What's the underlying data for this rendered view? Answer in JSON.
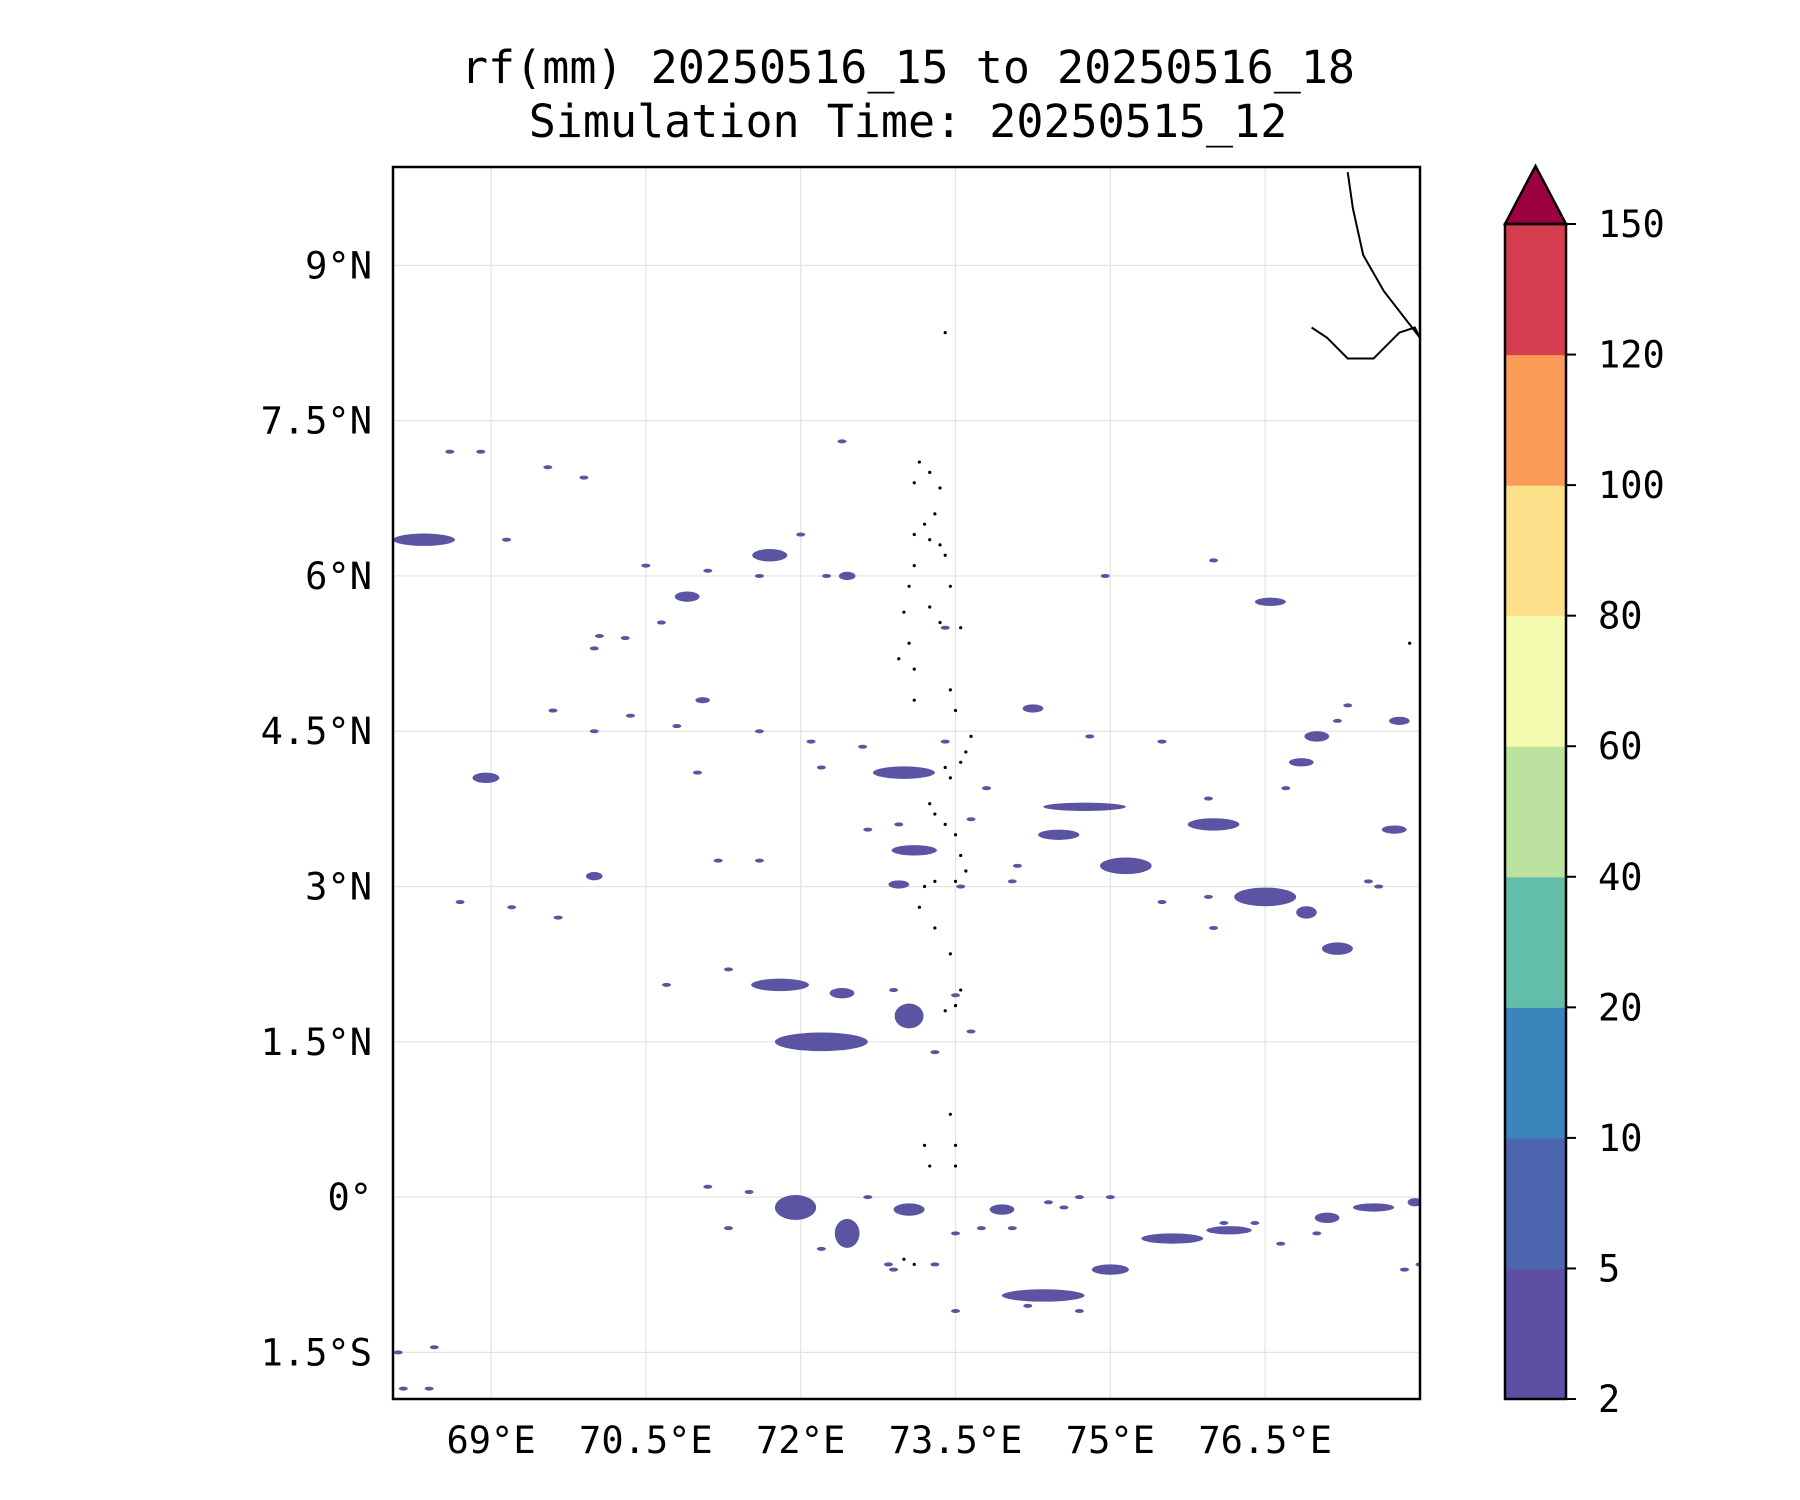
{
  "title": {
    "line1": "rf(mm) 20250516_15 to 20250516_18",
    "line2": "Simulation Time: 20250515_12"
  },
  "map": {
    "lon_range": [
      68.05,
      78.0
    ],
    "lat_range": [
      -1.95,
      9.95
    ],
    "x_ticks": [
      {
        "value": 69.0,
        "label": "69°E"
      },
      {
        "value": 70.5,
        "label": "70.5°E"
      },
      {
        "value": 72.0,
        "label": "72°E"
      },
      {
        "value": 73.5,
        "label": "73.5°E"
      },
      {
        "value": 75.0,
        "label": "75°E"
      },
      {
        "value": 76.5,
        "label": "76.5°E"
      }
    ],
    "y_ticks": [
      {
        "value": 9.0,
        "label": "9°N"
      },
      {
        "value": 7.5,
        "label": "7.5°N"
      },
      {
        "value": 6.0,
        "label": "6°N"
      },
      {
        "value": 4.5,
        "label": "4.5°N"
      },
      {
        "value": 3.0,
        "label": "3°N"
      },
      {
        "value": 1.5,
        "label": "1.5°N"
      },
      {
        "value": 0.0,
        "label": "0°"
      },
      {
        "value": -1.5,
        "label": "1.5°S"
      }
    ],
    "grid": true,
    "rain_color": "#5b54a3",
    "coastline": [
      [
        77.3,
        9.9
      ],
      [
        77.35,
        9.55
      ],
      [
        77.45,
        9.1
      ],
      [
        77.65,
        8.75
      ],
      [
        78.0,
        8.3
      ],
      [
        77.95,
        8.4
      ],
      [
        77.8,
        8.35
      ],
      [
        77.55,
        8.1
      ],
      [
        77.3,
        8.1
      ],
      [
        77.1,
        8.3
      ],
      [
        76.95,
        8.4
      ]
    ],
    "rain_cells": [
      {
        "lon": 68.35,
        "lat": 6.35,
        "rx": 0.3,
        "ry": 0.06
      },
      {
        "lon": 71.7,
        "lat": 6.2,
        "rx": 0.17,
        "ry": 0.06
      },
      {
        "lon": 72.45,
        "lat": 6.0,
        "rx": 0.08,
        "ry": 0.04
      },
      {
        "lon": 70.9,
        "lat": 5.8,
        "rx": 0.12,
        "ry": 0.05
      },
      {
        "lon": 76.55,
        "lat": 5.75,
        "rx": 0.15,
        "ry": 0.04
      },
      {
        "lon": 71.05,
        "lat": 4.8,
        "rx": 0.07,
        "ry": 0.03
      },
      {
        "lon": 74.25,
        "lat": 4.72,
        "rx": 0.1,
        "ry": 0.04
      },
      {
        "lon": 68.95,
        "lat": 4.05,
        "rx": 0.13,
        "ry": 0.05
      },
      {
        "lon": 73.0,
        "lat": 4.1,
        "rx": 0.3,
        "ry": 0.06
      },
      {
        "lon": 77.0,
        "lat": 4.45,
        "rx": 0.12,
        "ry": 0.05
      },
      {
        "lon": 76.85,
        "lat": 4.2,
        "rx": 0.12,
        "ry": 0.04
      },
      {
        "lon": 77.8,
        "lat": 4.6,
        "rx": 0.1,
        "ry": 0.04
      },
      {
        "lon": 74.75,
        "lat": 3.77,
        "rx": 0.4,
        "ry": 0.04
      },
      {
        "lon": 76.0,
        "lat": 3.6,
        "rx": 0.25,
        "ry": 0.06
      },
      {
        "lon": 74.5,
        "lat": 3.5,
        "rx": 0.2,
        "ry": 0.05
      },
      {
        "lon": 73.1,
        "lat": 3.35,
        "rx": 0.22,
        "ry": 0.05
      },
      {
        "lon": 75.15,
        "lat": 3.2,
        "rx": 0.25,
        "ry": 0.08
      },
      {
        "lon": 77.75,
        "lat": 3.55,
        "rx": 0.12,
        "ry": 0.04
      },
      {
        "lon": 70.0,
        "lat": 3.1,
        "rx": 0.08,
        "ry": 0.04
      },
      {
        "lon": 72.95,
        "lat": 3.02,
        "rx": 0.1,
        "ry": 0.04
      },
      {
        "lon": 76.5,
        "lat": 2.9,
        "rx": 0.3,
        "ry": 0.09
      },
      {
        "lon": 76.9,
        "lat": 2.75,
        "rx": 0.1,
        "ry": 0.06
      },
      {
        "lon": 77.2,
        "lat": 2.4,
        "rx": 0.15,
        "ry": 0.06
      },
      {
        "lon": 71.8,
        "lat": 2.05,
        "rx": 0.28,
        "ry": 0.06
      },
      {
        "lon": 72.4,
        "lat": 1.97,
        "rx": 0.12,
        "ry": 0.05
      },
      {
        "lon": 73.05,
        "lat": 1.75,
        "rx": 0.14,
        "ry": 0.12
      },
      {
        "lon": 72.2,
        "lat": 1.5,
        "rx": 0.45,
        "ry": 0.09
      },
      {
        "lon": 71.95,
        "lat": -0.1,
        "rx": 0.2,
        "ry": 0.12
      },
      {
        "lon": 72.45,
        "lat": -0.35,
        "rx": 0.12,
        "ry": 0.14
      },
      {
        "lon": 73.05,
        "lat": -0.12,
        "rx": 0.15,
        "ry": 0.06
      },
      {
        "lon": 73.95,
        "lat": -0.12,
        "rx": 0.12,
        "ry": 0.05
      },
      {
        "lon": 74.35,
        "lat": -0.95,
        "rx": 0.4,
        "ry": 0.06
      },
      {
        "lon": 75.0,
        "lat": -0.7,
        "rx": 0.18,
        "ry": 0.05
      },
      {
        "lon": 75.6,
        "lat": -0.4,
        "rx": 0.3,
        "ry": 0.05
      },
      {
        "lon": 76.15,
        "lat": -0.32,
        "rx": 0.22,
        "ry": 0.04
      },
      {
        "lon": 77.1,
        "lat": -0.2,
        "rx": 0.12,
        "ry": 0.05
      },
      {
        "lon": 77.55,
        "lat": -0.1,
        "rx": 0.2,
        "ry": 0.04
      },
      {
        "lon": 77.95,
        "lat": -0.05,
        "rx": 0.07,
        "ry": 0.04
      }
    ],
    "rain_specks": [
      [
        68.9,
        7.2
      ],
      [
        68.6,
        7.2
      ],
      [
        69.55,
        7.05
      ],
      [
        69.9,
        6.95
      ],
      [
        69.15,
        6.35
      ],
      [
        72.4,
        7.3
      ],
      [
        72.0,
        6.4
      ],
      [
        71.1,
        6.05
      ],
      [
        70.5,
        6.1
      ],
      [
        72.25,
        6.0
      ],
      [
        71.6,
        6.0
      ],
      [
        70.65,
        5.55
      ],
      [
        70.05,
        5.42
      ],
      [
        70.3,
        5.4
      ],
      [
        70.0,
        5.3
      ],
      [
        73.4,
        5.5
      ],
      [
        74.95,
        6.0
      ],
      [
        76.0,
        6.15
      ],
      [
        69.6,
        4.7
      ],
      [
        70.35,
        4.65
      ],
      [
        70.0,
        4.5
      ],
      [
        70.8,
        4.55
      ],
      [
        71.6,
        4.5
      ],
      [
        72.1,
        4.4
      ],
      [
        72.6,
        4.35
      ],
      [
        73.4,
        4.4
      ],
      [
        71.0,
        4.1
      ],
      [
        72.2,
        4.15
      ],
      [
        73.8,
        3.95
      ],
      [
        74.8,
        4.45
      ],
      [
        75.5,
        4.4
      ],
      [
        77.2,
        4.6
      ],
      [
        77.3,
        4.75
      ],
      [
        75.95,
        3.85
      ],
      [
        76.7,
        3.95
      ],
      [
        73.65,
        3.65
      ],
      [
        72.65,
        3.55
      ],
      [
        72.95,
        3.6
      ],
      [
        71.6,
        3.25
      ],
      [
        71.2,
        3.25
      ],
      [
        74.1,
        3.2
      ],
      [
        74.05,
        3.05
      ],
      [
        77.5,
        3.05
      ],
      [
        77.6,
        3.0
      ],
      [
        73.55,
        3.0
      ],
      [
        75.5,
        2.85
      ],
      [
        76.0,
        2.6
      ],
      [
        75.95,
        2.9
      ],
      [
        69.65,
        2.7
      ],
      [
        68.7,
        2.85
      ],
      [
        69.2,
        2.8
      ],
      [
        70.7,
        2.05
      ],
      [
        71.3,
        2.2
      ],
      [
        72.9,
        2.0
      ],
      [
        73.5,
        1.95
      ],
      [
        73.65,
        1.6
      ],
      [
        73.3,
        1.4
      ],
      [
        71.1,
        0.1
      ],
      [
        71.5,
        0.05
      ],
      [
        72.65,
        0.0
      ],
      [
        73.5,
        -0.35
      ],
      [
        73.75,
        -0.3
      ],
      [
        74.4,
        -0.05
      ],
      [
        74.7,
        0.0
      ],
      [
        75.0,
        0.0
      ],
      [
        74.05,
        -0.3
      ],
      [
        74.55,
        -0.1
      ],
      [
        72.85,
        -0.65
      ],
      [
        73.3,
        -0.65
      ],
      [
        73.5,
        -1.1
      ],
      [
        74.2,
        -1.05
      ],
      [
        74.7,
        -1.1
      ],
      [
        71.3,
        -0.3
      ],
      [
        72.2,
        -0.5
      ],
      [
        72.9,
        -0.7
      ],
      [
        76.4,
        -0.25
      ],
      [
        76.1,
        -0.25
      ],
      [
        76.65,
        -0.45
      ],
      [
        77.0,
        -0.35
      ],
      [
        77.85,
        -0.7
      ],
      [
        78.0,
        -0.65
      ],
      [
        68.1,
        -1.5
      ],
      [
        68.45,
        -1.45
      ],
      [
        68.4,
        -1.85
      ],
      [
        68.15,
        -1.85
      ]
    ],
    "atoll_dots": [
      [
        73.4,
        4.15
      ],
      [
        73.45,
        4.05
      ],
      [
        73.55,
        4.2
      ],
      [
        73.6,
        4.3
      ],
      [
        73.3,
        3.7
      ],
      [
        73.25,
        3.8
      ],
      [
        73.4,
        3.6
      ],
      [
        73.5,
        3.5
      ],
      [
        73.55,
        3.3
      ],
      [
        73.6,
        3.15
      ],
      [
        73.5,
        3.05
      ],
      [
        73.3,
        3.05
      ],
      [
        73.2,
        3.0
      ],
      [
        73.15,
        2.8
      ],
      [
        73.3,
        2.6
      ],
      [
        73.45,
        2.35
      ],
      [
        73.55,
        2.0
      ],
      [
        73.5,
        1.85
      ],
      [
        73.4,
        1.8
      ],
      [
        73.2,
        0.5
      ],
      [
        73.25,
        0.3
      ],
      [
        73.5,
        0.3
      ],
      [
        73.5,
        0.5
      ],
      [
        73.45,
        0.8
      ],
      [
        73.1,
        6.9
      ],
      [
        73.15,
        7.1
      ],
      [
        73.25,
        7.0
      ],
      [
        73.35,
        6.85
      ],
      [
        73.3,
        6.6
      ],
      [
        73.2,
        6.5
      ],
      [
        73.25,
        6.35
      ],
      [
        73.35,
        6.3
      ],
      [
        73.4,
        6.2
      ],
      [
        73.1,
        6.4
      ],
      [
        73.1,
        6.1
      ],
      [
        73.05,
        5.9
      ],
      [
        73.0,
        5.65
      ],
      [
        73.05,
        5.35
      ],
      [
        73.1,
        5.1
      ],
      [
        73.1,
        4.8
      ],
      [
        73.25,
        5.7
      ],
      [
        73.35,
        5.55
      ],
      [
        73.45,
        5.9
      ],
      [
        73.55,
        5.5
      ],
      [
        73.45,
        4.9
      ],
      [
        73.5,
        4.7
      ],
      [
        72.95,
        5.2
      ],
      [
        73.65,
        4.45
      ],
      [
        73.0,
        -0.6
      ],
      [
        73.1,
        -0.65
      ],
      [
        73.4,
        8.35
      ],
      [
        77.9,
        5.35
      ]
    ]
  },
  "colorbar": {
    "boundaries": [
      2,
      5,
      10,
      20,
      40,
      60,
      80,
      100,
      120,
      150
    ],
    "tick_labels": [
      "2",
      "5",
      "10",
      "20",
      "40",
      "60",
      "80",
      "100",
      "120",
      "150"
    ],
    "colors": [
      "#5e4fa2",
      "#4d65ae",
      "#3a85bb",
      "#63bea9",
      "#bbe29f",
      "#f4fbaf",
      "#fce08a",
      "#fa9b58",
      "#d53e4f"
    ],
    "extend_max_color": "#9e0142"
  }
}
